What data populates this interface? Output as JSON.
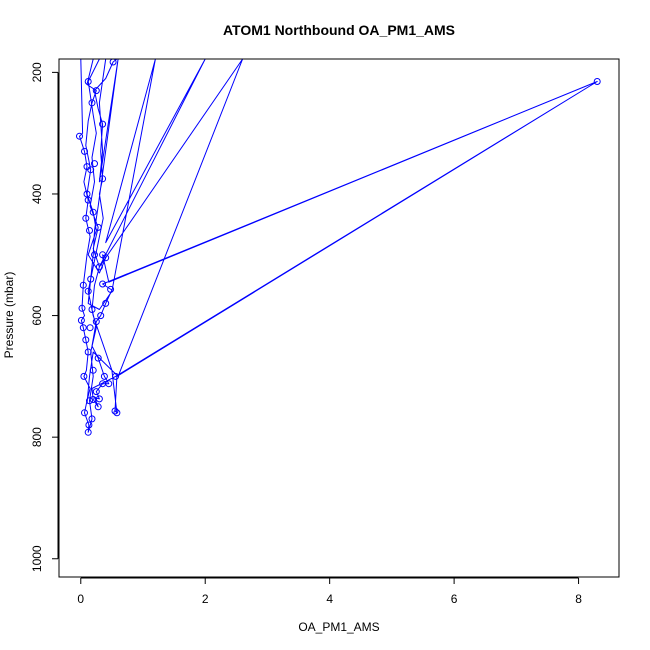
{
  "chart_data": {
    "type": "line",
    "title": "ATOM1 Northbound OA_PM1_AMS",
    "xlabel": "OA_PM1_AMS",
    "ylabel": "Pressure (mbar)",
    "xlim": [
      -0.35,
      8.65
    ],
    "ylim": [
      1030,
      178
    ],
    "y_reversed": true,
    "x_ticks": [
      0,
      2,
      4,
      6,
      8
    ],
    "y_ticks": [
      200,
      400,
      600,
      800,
      1000
    ],
    "grid": false,
    "legend": "none",
    "line_color": "#0000ff",
    "marker": "open-circle",
    "series": [
      {
        "points": [
          [
            0.0,
            178
          ],
          [
            0.03,
            300
          ],
          [
            -0.02,
            305
          ],
          [
            0.06,
            330
          ],
          [
            0.1,
            355
          ],
          [
            0.05,
            380
          ],
          [
            0.12,
            410
          ],
          [
            0.08,
            440
          ],
          [
            0.15,
            470
          ],
          [
            0.1,
            500
          ],
          [
            0.04,
            550
          ],
          [
            0.02,
            588
          ],
          [
            0.06,
            600
          ],
          [
            0.01,
            608
          ],
          [
            0.04,
            620
          ],
          [
            0.08,
            640
          ],
          [
            0.12,
            660
          ],
          [
            0.09,
            690
          ],
          [
            0.05,
            700
          ],
          [
            0.15,
            720
          ],
          [
            0.1,
            740
          ],
          [
            0.06,
            760
          ],
          [
            0.13,
            780
          ],
          [
            0.12,
            792
          ],
          [
            0.18,
            770
          ],
          [
            0.14,
            740
          ],
          [
            0.2,
            700
          ],
          [
            0.16,
            660
          ],
          [
            0.25,
            620
          ],
          [
            0.18,
            590
          ],
          [
            0.22,
            550
          ],
          [
            0.3,
            520
          ],
          [
            0.2,
            490
          ],
          [
            0.28,
            455
          ],
          [
            0.15,
            420
          ],
          [
            0.22,
            380
          ],
          [
            0.18,
            340
          ],
          [
            0.25,
            300
          ],
          [
            0.2,
            270
          ],
          [
            0.15,
            235
          ],
          [
            0.12,
            215
          ],
          [
            0.3,
            178
          ],
          [
            0.2,
            178
          ],
          [
            0.1,
            220
          ],
          [
            0.25,
            230
          ],
          [
            0.18,
            250
          ],
          [
            0.12,
            280
          ],
          [
            0.08,
            320
          ],
          [
            0.16,
            360
          ],
          [
            0.1,
            400
          ],
          [
            0.2,
            430
          ],
          [
            0.25,
            460
          ],
          [
            0.12,
            500
          ],
          [
            0.3,
            530
          ],
          [
            0.4,
            505
          ],
          [
            0.35,
            500
          ],
          [
            0.45,
            545
          ],
          [
            8.3,
            215
          ],
          [
            0.35,
            548
          ],
          [
            0.5,
            558
          ],
          [
            0.4,
            580
          ],
          [
            0.32,
            600
          ],
          [
            0.25,
            610
          ],
          [
            0.18,
            650
          ],
          [
            0.28,
            670
          ],
          [
            0.38,
            700
          ],
          [
            0.45,
            712
          ],
          [
            0.35,
            712
          ],
          [
            0.25,
            725
          ],
          [
            0.3,
            737
          ],
          [
            0.22,
            735
          ],
          [
            0.28,
            750
          ],
          [
            0.2,
            738
          ],
          [
            0.18,
            720
          ],
          [
            0.56,
            700
          ],
          [
            8.3,
            215
          ],
          [
            0.58,
            700
          ],
          [
            0.55,
            757
          ],
          [
            0.58,
            760
          ],
          [
            0.5,
            690
          ],
          [
            0.4,
            660
          ],
          [
            0.3,
            630
          ],
          [
            0.2,
            600
          ],
          [
            0.12,
            560
          ],
          [
            0.2,
            520
          ],
          [
            0.28,
            480
          ],
          [
            0.36,
            440
          ],
          [
            0.3,
            400
          ],
          [
            0.35,
            375
          ],
          [
            0.32,
            330
          ],
          [
            0.35,
            285
          ],
          [
            0.28,
            260
          ],
          [
            0.22,
            230
          ],
          [
            0.4,
            210
          ],
          [
            0.52,
            183
          ],
          [
            0.58,
            178
          ],
          [
            0.4,
            178
          ],
          [
            0.3,
            250
          ],
          [
            0.35,
            330
          ],
          [
            0.3,
            380
          ],
          [
            0.6,
            178
          ],
          [
            0.28,
            420
          ],
          [
            0.22,
            460
          ],
          [
            0.2,
            500
          ],
          [
            0.16,
            540
          ],
          [
            0.12,
            580
          ],
          [
            0.3,
            590
          ],
          [
            0.5,
            560
          ],
          [
            1.2,
            178
          ],
          [
            0.4,
            480
          ],
          [
            2.0,
            178
          ],
          [
            0.3,
            520
          ],
          [
            2.6,
            178
          ],
          [
            0.6,
            700
          ],
          [
            0.2,
            660
          ],
          [
            0.14,
            700
          ],
          [
            0.1,
            745
          ]
        ]
      }
    ],
    "point_markers": [
      [
        -0.02,
        305
      ],
      [
        0.06,
        330
      ],
      [
        0.1,
        355
      ],
      [
        0.12,
        410
      ],
      [
        0.08,
        440
      ],
      [
        0.04,
        550
      ],
      [
        0.02,
        588
      ],
      [
        0.01,
        608
      ],
      [
        0.04,
        620
      ],
      [
        0.05,
        700
      ],
      [
        0.06,
        760
      ],
      [
        0.13,
        780
      ],
      [
        0.12,
        792
      ],
      [
        0.14,
        740
      ],
      [
        0.12,
        215
      ],
      [
        0.25,
        230
      ],
      [
        0.35,
        285
      ],
      [
        0.52,
        183
      ],
      [
        0.35,
        375
      ],
      [
        0.28,
        455
      ],
      [
        0.4,
        505
      ],
      [
        0.35,
        500
      ],
      [
        0.48,
        557
      ],
      [
        0.35,
        548
      ],
      [
        0.4,
        580
      ],
      [
        0.32,
        600
      ],
      [
        0.28,
        670
      ],
      [
        0.38,
        700
      ],
      [
        0.45,
        712
      ],
      [
        0.35,
        712
      ],
      [
        0.25,
        725
      ],
      [
        0.3,
        737
      ],
      [
        0.28,
        750
      ],
      [
        0.2,
        738
      ],
      [
        0.56,
        700
      ],
      [
        0.55,
        757
      ],
      [
        0.58,
        760
      ],
      [
        0.18,
        770
      ],
      [
        0.12,
        660
      ],
      [
        0.15,
        620
      ],
      [
        0.18,
        590
      ],
      [
        0.16,
        540
      ],
      [
        0.22,
        500
      ],
      [
        0.2,
        430
      ],
      [
        0.16,
        360
      ],
      [
        0.18,
        250
      ],
      [
        0.22,
        350
      ],
      [
        0.1,
        400
      ],
      [
        0.14,
        460
      ],
      [
        0.25,
        610
      ],
      [
        0.3,
        520
      ],
      [
        0.12,
        560
      ],
      [
        0.2,
        690
      ],
      [
        0.08,
        640
      ],
      [
        8.3,
        215
      ]
    ]
  }
}
